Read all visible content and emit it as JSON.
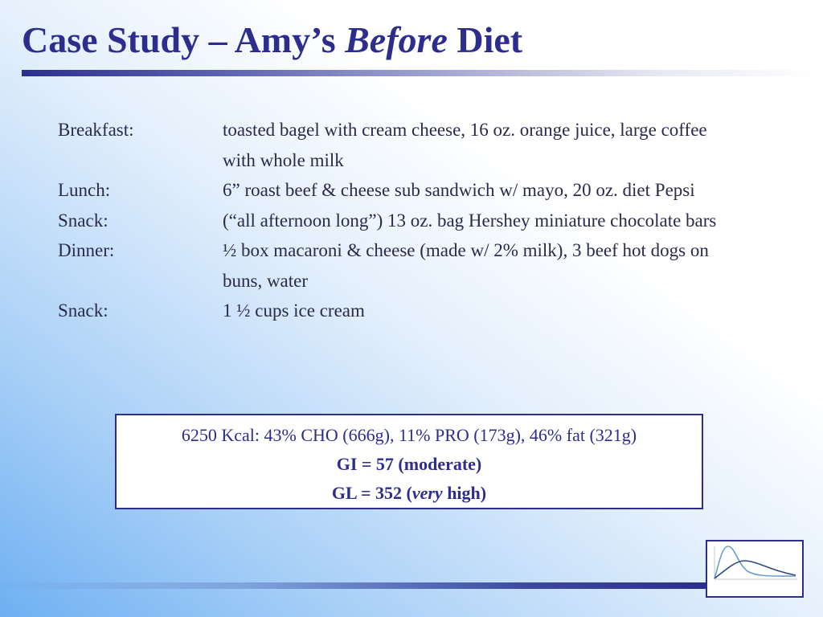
{
  "slide": {
    "title_prefix": "Case Study – Amy’s ",
    "title_emphasis": "Before",
    "title_suffix": " Diet"
  },
  "meals": [
    {
      "label": "Breakfast:",
      "description": "toasted bagel with cream cheese, 16 oz. orange juice, large coffee with whole milk"
    },
    {
      "label": "Lunch:",
      "description": "6” roast beef & cheese sub sandwich w/ mayo, 20 oz. diet Pepsi"
    },
    {
      "label": "Snack:",
      "description": "(“all afternoon long”) 13 oz. bag Hershey miniature chocolate bars"
    },
    {
      "label": "Dinner:",
      "description": "½ box macaroni & cheese (made w/ 2% milk), 3 beef hot dogs on buns, water"
    },
    {
      "label": "Snack:",
      "description": "1 ½ cups ice cream"
    }
  ],
  "summary": {
    "line1": "6250 Kcal: 43% CHO (666g), 11% PRO (173g), 46% fat (321g)",
    "line2": "GI = 57 (moderate)",
    "line3_prefix": "GL = 352 (",
    "line3_emphasis": "very",
    "line3_suffix": " high)"
  },
  "colors": {
    "title": "#2d2d8e",
    "body_text": "#2a2a4a",
    "box_border": "#2d2d8e",
    "logo_curve_dark": "#2d4a7a",
    "logo_curve_light": "#6a9fd0"
  },
  "icons": {
    "logo": "glucose-response-curves-icon"
  }
}
